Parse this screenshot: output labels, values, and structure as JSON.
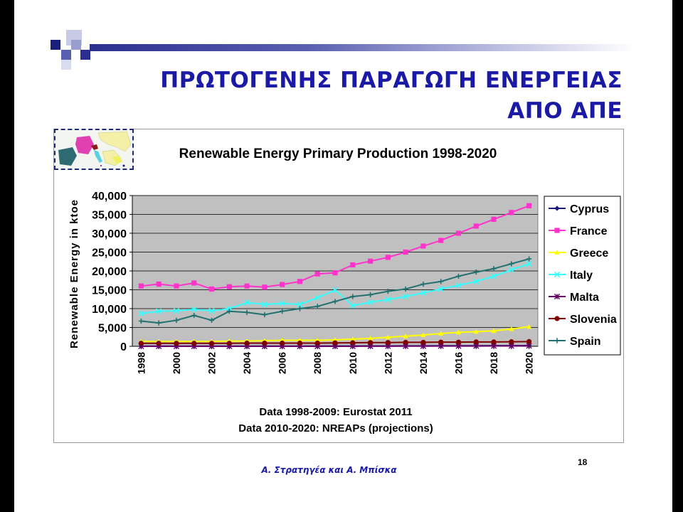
{
  "slide": {
    "title_line1": "ΠΡΩΤΟΓΕΝΗΣ ΠΑΡΑΓΩΓΗ ΕΝΕΡΓΕΙΑΣ",
    "title_line2": "ΑΠΟ ΑΠΕ",
    "credit": "Α. Στρατηγέα και Α. Μπίσκα",
    "page_number": "18"
  },
  "chart_data": {
    "type": "line",
    "title": "Renewable Energy Primary Production 1998-2020",
    "ylabel": "Renewable Energy in ktoe",
    "xlabel": "",
    "notes": [
      "Data 1998-2009: Eurostat 2011",
      "Data 2010-2020: NREAPs (projections)"
    ],
    "ylim": [
      0,
      40000
    ],
    "yticks": [
      0,
      5000,
      10000,
      15000,
      20000,
      25000,
      30000,
      35000,
      40000
    ],
    "ytick_labels": [
      "0",
      "5,000",
      "10,000",
      "15,000",
      "20,000",
      "25,000",
      "30,000",
      "35,000",
      "40,000"
    ],
    "x": [
      1998,
      1999,
      2000,
      2001,
      2002,
      2003,
      2004,
      2005,
      2006,
      2007,
      2008,
      2009,
      2010,
      2011,
      2012,
      2013,
      2014,
      2015,
      2016,
      2017,
      2018,
      2019,
      2020
    ],
    "xtick_labels": [
      "1998",
      "2000",
      "2002",
      "2004",
      "2006",
      "2008",
      "2010",
      "2012",
      "2014",
      "2016",
      "2018",
      "2020"
    ],
    "grid": true,
    "legend": "right",
    "plot_background": "#c0c0c0",
    "series": [
      {
        "name": "Cyprus",
        "color": "#1a1a7a",
        "marker": "diamond",
        "values": [
          50,
          50,
          50,
          50,
          50,
          50,
          50,
          50,
          50,
          50,
          60,
          60,
          80,
          90,
          100,
          110,
          120,
          130,
          140,
          150,
          160,
          170,
          180
        ]
      },
      {
        "name": "France",
        "color": "#ff33cc",
        "marker": "square",
        "values": [
          16000,
          16500,
          16000,
          16800,
          15200,
          15800,
          16000,
          15700,
          16400,
          17200,
          19200,
          19500,
          21600,
          22600,
          23600,
          25000,
          26600,
          28100,
          30000,
          31900,
          33700,
          35500,
          37300
        ]
      },
      {
        "name": "Greece",
        "color": "#ffff00",
        "marker": "triangle",
        "values": [
          1300,
          1300,
          1300,
          1300,
          1300,
          1400,
          1400,
          1500,
          1600,
          1600,
          1600,
          1700,
          1900,
          2100,
          2400,
          2700,
          3000,
          3400,
          3700,
          3900,
          4100,
          4600,
          5200
        ]
      },
      {
        "name": "Italy",
        "color": "#33ffff",
        "marker": "x",
        "values": [
          8700,
          9300,
          9400,
          9800,
          9400,
          10000,
          11600,
          11100,
          11400,
          11100,
          12900,
          14900,
          10800,
          11700,
          12400,
          13200,
          14200,
          15200,
          16200,
          17200,
          18600,
          20300,
          21900
        ]
      },
      {
        "name": "Malta",
        "color": "#660066",
        "marker": "star",
        "values": [
          0,
          0,
          0,
          0,
          0,
          0,
          0,
          0,
          0,
          0,
          0,
          0,
          10,
          20,
          30,
          40,
          50,
          60,
          70,
          80,
          90,
          100,
          110
        ]
      },
      {
        "name": "Slovenia",
        "color": "#800000",
        "marker": "circle",
        "values": [
          800,
          800,
          800,
          800,
          800,
          800,
          850,
          850,
          850,
          850,
          850,
          900,
          950,
          1000,
          1000,
          1050,
          1050,
          1100,
          1100,
          1150,
          1150,
          1200,
          1250
        ]
      },
      {
        "name": "Spain",
        "color": "#207070",
        "marker": "plus",
        "values": [
          6700,
          6200,
          6900,
          8200,
          6900,
          9300,
          9000,
          8400,
          9300,
          10000,
          10600,
          11900,
          13200,
          13700,
          14600,
          15200,
          16500,
          17200,
          18600,
          19700,
          20600,
          21900,
          23200
        ]
      }
    ]
  }
}
